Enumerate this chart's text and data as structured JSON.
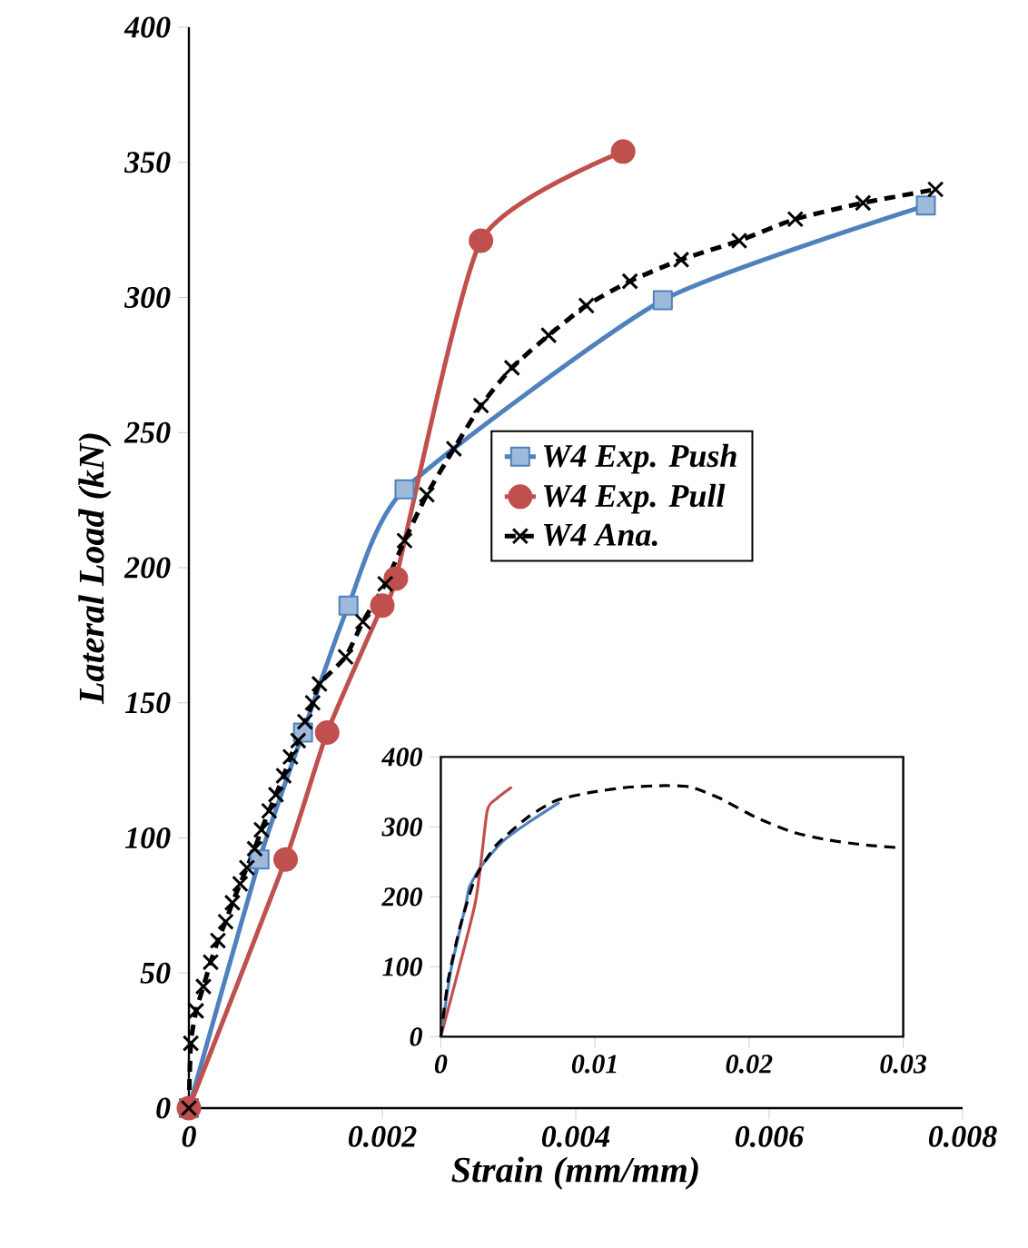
{
  "chart_data": [
    {
      "type": "line",
      "xlabel": "Strain (mm/mm)",
      "ylabel": "Lateral Load (kN)",
      "xlim": [
        0,
        0.008
      ],
      "ylim": [
        0,
        400
      ],
      "xticks": [
        0,
        0.002,
        0.004,
        0.006,
        0.008
      ],
      "yticks": [
        0,
        50,
        100,
        150,
        200,
        250,
        300,
        350,
        400
      ],
      "grid": false,
      "legend": "right",
      "series": [
        {
          "name": "W4 Exp. Push",
          "color": "#4f81bd",
          "marker": "square",
          "line_style": "solid",
          "x": [
            0,
            0.00073,
            0.00118,
            0.00165,
            0.00223,
            0.0049,
            0.00762
          ],
          "values": [
            0,
            92,
            139,
            186,
            229,
            299,
            334
          ]
        },
        {
          "name": "W4 Exp. Pull",
          "color": "#c0504d",
          "marker": "circle",
          "line_style": "solid",
          "x": [
            0,
            0.001,
            0.00143,
            0.002,
            0.00214,
            0.00302,
            0.00449
          ],
          "values": [
            0,
            92,
            139,
            186,
            196,
            321,
            354
          ]
        },
        {
          "name": "W4 Ana.",
          "color": "#000000",
          "marker": "cross",
          "line_style": "dashed",
          "x": [
            0,
            2e-05,
            7.5e-05,
            0.00015,
            0.000225,
            0.0003,
            0.00038,
            0.00045,
            0.00053,
            0.0006,
            0.00068,
            0.00075,
            0.00083,
            0.0009,
            0.00098,
            0.00105,
            0.00113,
            0.0012,
            0.00128,
            0.00135,
            0.00162,
            0.0018,
            0.00203,
            0.00223,
            0.00246,
            0.00274,
            0.00302,
            0.00334,
            0.00372,
            0.00411,
            0.00456,
            0.00509,
            0.00569,
            0.00627,
            0.00697,
            0.00772
          ],
          "values": [
            0,
            24,
            36,
            45,
            54,
            62,
            69,
            76,
            83,
            89,
            96,
            103,
            110,
            116,
            123,
            130,
            136,
            143,
            150,
            157,
            167,
            180,
            194,
            210,
            227,
            244,
            260,
            274,
            286,
            297,
            306,
            314,
            321,
            329,
            335,
            340
          ]
        }
      ]
    },
    {
      "type": "line",
      "xlim": [
        0,
        0.03
      ],
      "ylim": [
        0,
        400
      ],
      "xticks": [
        0,
        0.01,
        0.02,
        0.03
      ],
      "yticks": [
        0,
        100,
        200,
        300,
        400
      ],
      "grid": false,
      "legend": false,
      "series": [
        {
          "color": "#4f81bd",
          "line_style": "solid",
          "x": [
            0,
            0.00067,
            0.00165,
            0.00185,
            0.00263,
            0.004,
            0.0056,
            0.0077
          ],
          "values": [
            0,
            97,
            192,
            214,
            244,
            279,
            305,
            335
          ]
        },
        {
          "color": "#c0504d",
          "line_style": "solid",
          "x": [
            0,
            0.00224,
            0.003,
            0.0036,
            0.0046
          ],
          "values": [
            0,
            192,
            322,
            340,
            357
          ]
        },
        {
          "color": "#000000",
          "line_style": "dashed",
          "x": [
            0,
            0.00047,
            0.00126,
            0.00224,
            0.0036,
            0.0056,
            0.0075,
            0.0099,
            0.0123,
            0.0146,
            0.0162,
            0.0181,
            0.0205,
            0.0229,
            0.0252,
            0.0276,
            0.0299
          ],
          "values": [
            0,
            80,
            158,
            227,
            274,
            313,
            338,
            350,
            357,
            359,
            357,
            341,
            313,
            292,
            281,
            274,
            270
          ]
        }
      ]
    }
  ]
}
